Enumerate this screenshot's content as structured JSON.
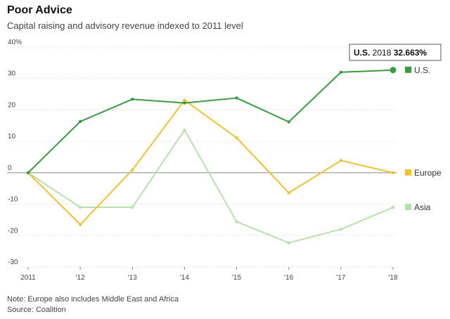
{
  "header": {
    "title": "Poor Advice",
    "subtitle": "Capital raising and advisory revenue indexed to 2011 level"
  },
  "footer": {
    "note": "Note: Europe also includes Middle East and Africa",
    "source": "Source: Coalition"
  },
  "chart_data": {
    "type": "line",
    "title": "Poor Advice",
    "subtitle": "Capital raising and advisory revenue indexed to 2011 level",
    "x": [
      "2011",
      "'12",
      "'13",
      "'14",
      "'15",
      "'16",
      "'17",
      "'18"
    ],
    "ylim": [
      -30,
      40
    ],
    "yticks": [
      40,
      30,
      20,
      10,
      0,
      -10,
      -20,
      -30
    ],
    "ytick_labels": [
      "40%",
      "30",
      "20",
      "10",
      "0",
      "-10",
      "-20",
      "-30"
    ],
    "grid": true,
    "legend_placement": "right, at series ends",
    "series": [
      {
        "name": "U.S.",
        "color": "#3b9a3f",
        "values": [
          0,
          16.3,
          23.4,
          22.2,
          23.8,
          16.2,
          32.0,
          32.663
        ]
      },
      {
        "name": "Europe",
        "color": "#f0c132",
        "values": [
          0,
          -16.5,
          0.9,
          23.1,
          11.1,
          -6.4,
          3.9,
          0
        ]
      },
      {
        "name": "Asia",
        "color": "#b8e0ae",
        "values": [
          0,
          -11.0,
          -11.0,
          13.6,
          -15.6,
          -22.3,
          -18.0,
          -11.0
        ]
      }
    ],
    "tooltip": {
      "series": "U.S.",
      "x": "2018",
      "value": "32.663%"
    }
  }
}
